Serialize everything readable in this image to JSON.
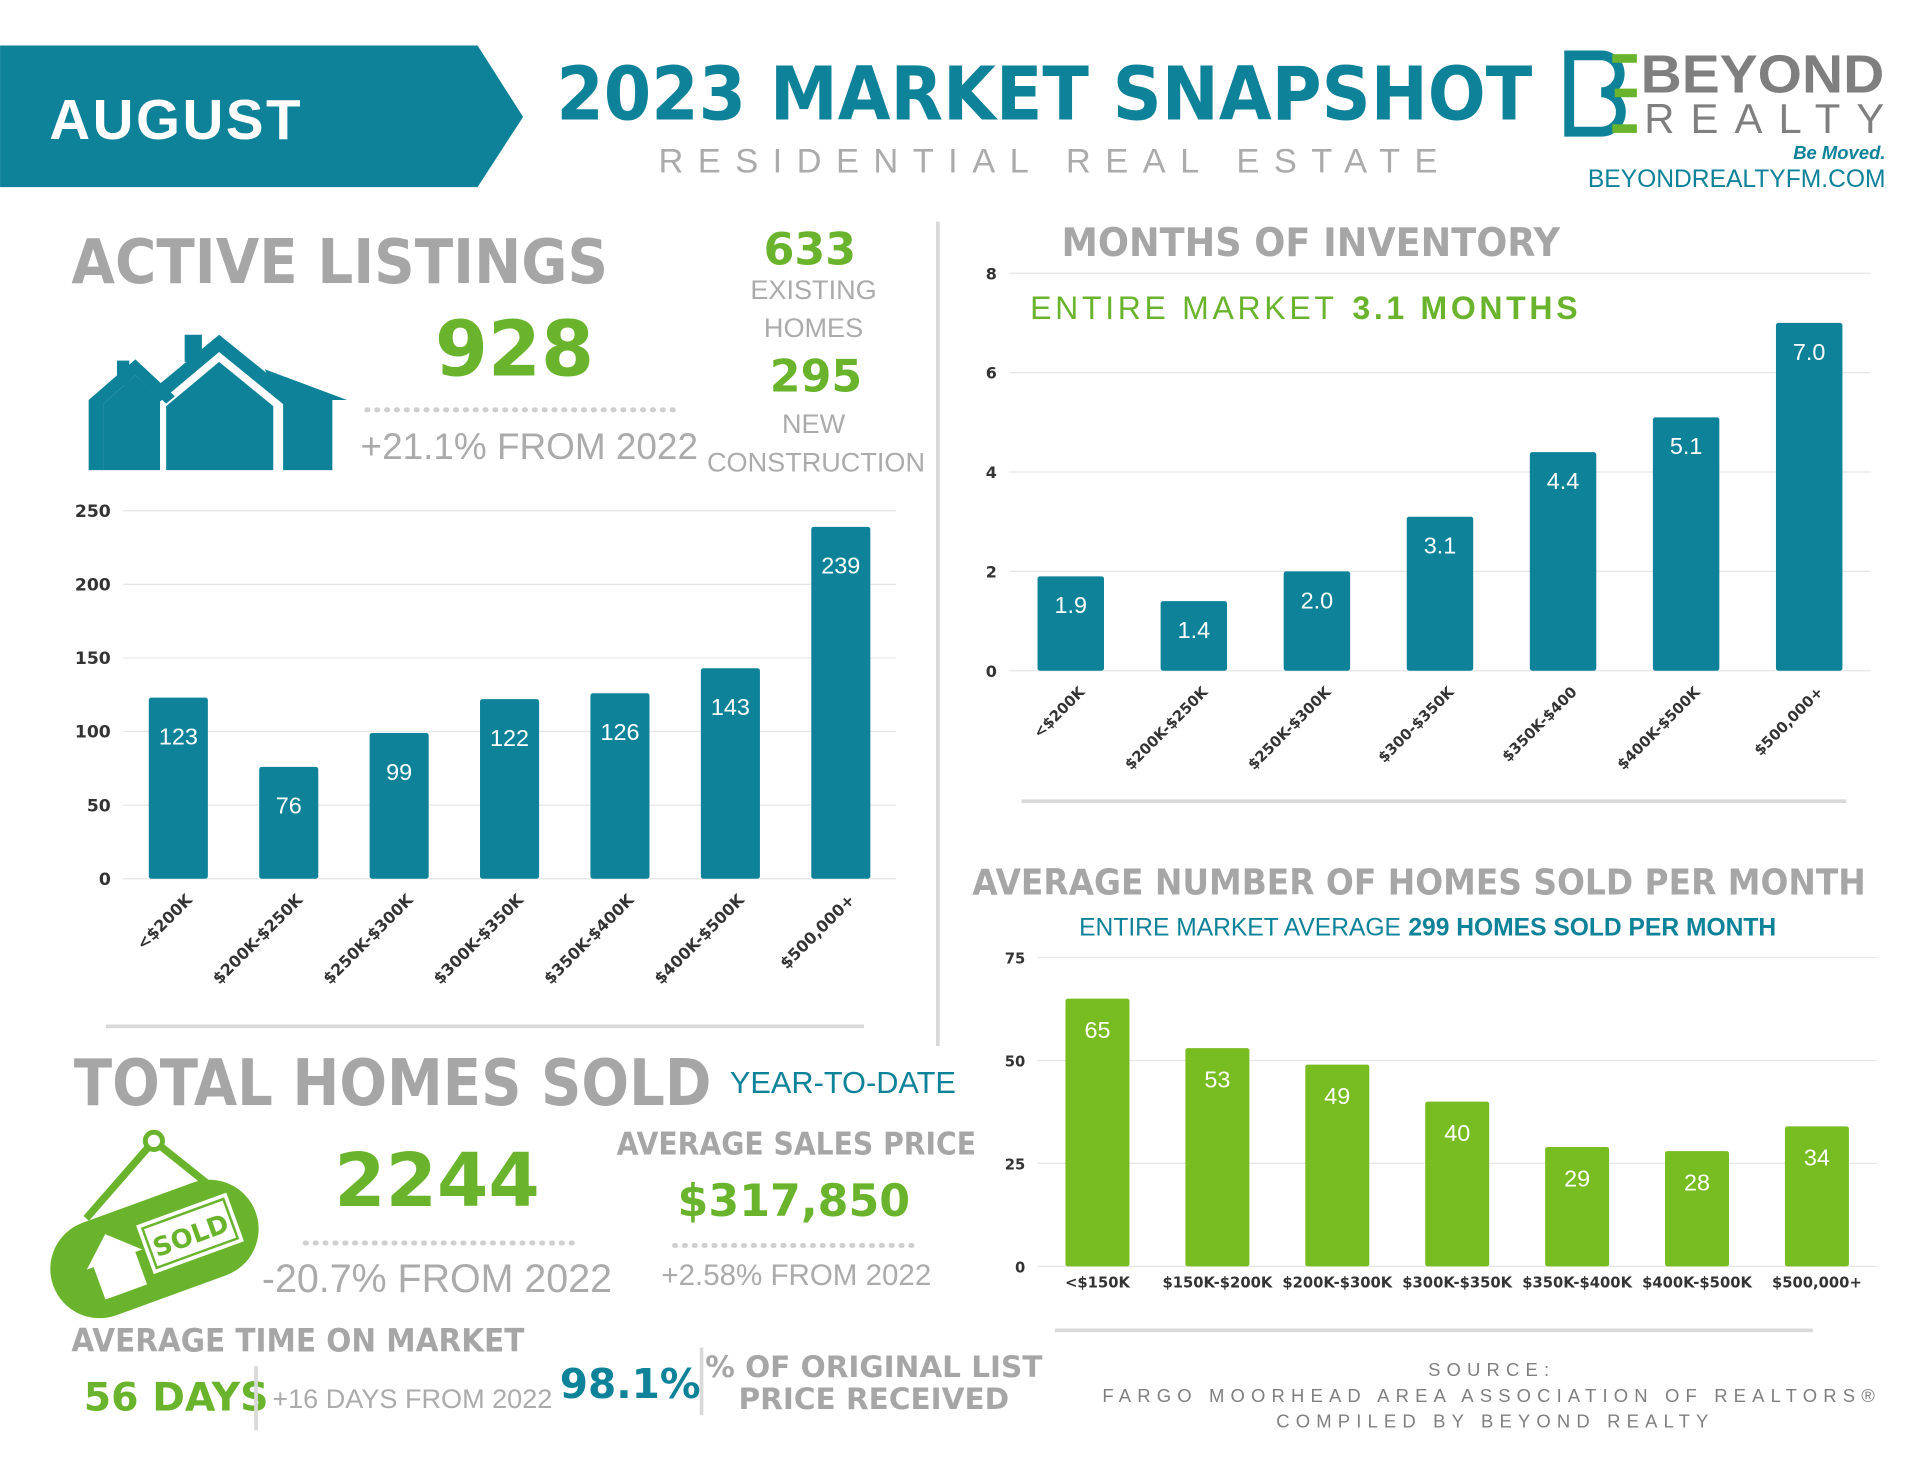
{
  "header": {
    "month": "AUGUST",
    "title": "2023 MARKET SNAPSHOT",
    "subtitle": "RESIDENTIAL REAL ESTATE",
    "brand": "BEYOND",
    "brand_sub": "REALTY",
    "tagline": "Be Moved.",
    "url": "BEYONDREALTYFM.COM"
  },
  "active_listings": {
    "total": 928,
    "change": "+21.1% FROM 2022",
    "existing": 633,
    "existing_label": [
      "EXISTING",
      "HOMES"
    ],
    "new": 295,
    "new_label": [
      "NEW",
      "CONSTRUCTION"
    ]
  },
  "total_sold": {
    "title": "TOTAL HOMES SOLD",
    "qualifier": "YEAR-TO-DATE",
    "total": 2244,
    "change": "-20.7% FROM 2022",
    "sign": "SOLD"
  },
  "avg_price": {
    "title": "AVERAGE SALES PRICE",
    "value": "$317,850",
    "change": "+2.58% FROM 2022"
  },
  "time_on_market": {
    "title": "AVERAGE TIME ON MARKET",
    "value": "56 DAYS",
    "change": "+16 DAYS FROM 2022"
  },
  "list_price": {
    "value": "98.1%",
    "label": [
      "% OF ORIGINAL LIST",
      "PRICE RECEIVED"
    ]
  },
  "source": [
    "SOURCE:",
    "FARGO MOORHEAD AREA ASSOCIATION OF REALTORS®",
    "COMPILED BY BEYOND REALTY"
  ],
  "chart_data": [
    {
      "type": "bar",
      "title": "ACTIVE LISTINGS",
      "categories": [
        "<$200K",
        "$200K-$250K",
        "$250K-$300K",
        "$300K-$350K",
        "$350K-$400K",
        "$400K-$500K",
        "$500,000+"
      ],
      "values": [
        123,
        76,
        99,
        122,
        126,
        143,
        239
      ],
      "color": "#0e8299",
      "ylim": [
        0,
        250
      ],
      "yticks": [
        0,
        50,
        100,
        150,
        200,
        250
      ],
      "grid": true
    },
    {
      "type": "bar",
      "title": "MONTHS OF INVENTORY",
      "subtitle": "ENTIRE MARKET",
      "subtitle_value": "3.1 MONTHS",
      "categories": [
        "<$200K",
        "$200K-$250K",
        "$250K-$300K",
        "$300-$350K",
        "$350K-$400",
        "$400K-$500K",
        "$500,000+"
      ],
      "values": [
        1.9,
        1.4,
        2.0,
        3.1,
        4.4,
        5.1,
        7.0
      ],
      "value_labels": [
        "1.9",
        "1.4",
        "2.0",
        "3.1",
        "4.4",
        "5.1",
        "7.0"
      ],
      "color": "#0e8299",
      "ylim": [
        0,
        8
      ],
      "yticks": [
        0,
        2,
        4,
        6,
        8
      ],
      "grid": true
    },
    {
      "type": "bar",
      "title": "AVERAGE NUMBER OF HOMES SOLD PER MONTH",
      "subtitle": "ENTIRE MARKET AVERAGE",
      "subtitle_value": "299 HOMES SOLD PER MONTH",
      "categories": [
        "<$150K",
        "$150K-$200K",
        "$200K-$300K",
        "$300K-$350K",
        "$350K-$400K",
        "$400K-$500K",
        "$500,000+"
      ],
      "values": [
        65,
        53,
        49,
        40,
        29,
        28,
        34
      ],
      "color": "#77bc21",
      "ylim": [
        0,
        75
      ],
      "yticks": [
        0,
        25,
        50,
        75
      ],
      "grid": true
    }
  ]
}
